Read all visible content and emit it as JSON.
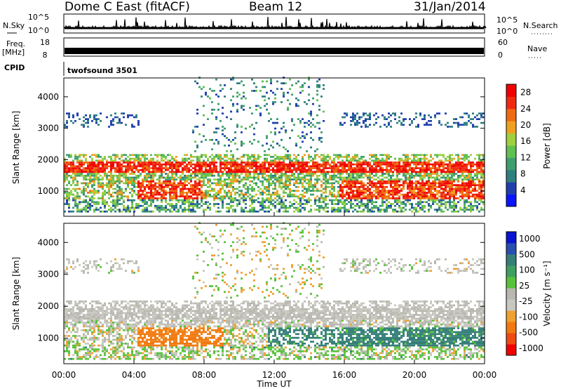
{
  "header": {
    "station": "Dome C East (fitACF)",
    "beam": "Beam 12",
    "date": "31/Jan/2014"
  },
  "status_panel": {
    "nsky_label": "N.Sky",
    "nsky_ticks": [
      "10^5",
      "10^0"
    ],
    "nsearch_label": "N.Search",
    "nsearch_ticks": [
      "10^5",
      "10^0"
    ],
    "freq_label": "Freq.",
    "freq_unit": "[MHz]",
    "freq_ticks": [
      "18",
      "8"
    ],
    "nave_label": "Nave",
    "nave_ticks": [
      "60",
      "0"
    ],
    "cpid_label": "CPID",
    "cpid_value": "twofsound 3501"
  },
  "colors": {
    "power_scale": [
      "#0a14ff",
      "#1f3fae",
      "#2f7f7f",
      "#3f9f6f",
      "#60c050",
      "#a0d040",
      "#f0a020",
      "#f06a10",
      "#f02a10",
      "#f00000"
    ],
    "velocity_scale": [
      "#0a14d0",
      "#284fb0",
      "#357f78",
      "#3f9f60",
      "#58c23a",
      "#b8b8b0",
      "#c8c8c0",
      "#f0a030",
      "#f07a10",
      "#f04a10",
      "#f00000"
    ]
  },
  "chart_data": [
    {
      "type": "heatmap",
      "title": "",
      "xlabel": "",
      "ylabel": "Slant Range [km]",
      "xlim": [
        "00:00",
        "24:00"
      ],
      "ylim": [
        200,
        4600
      ],
      "x_ticks": [
        "00:00",
        "04:00",
        "08:00",
        "12:00",
        "16:00",
        "20:00",
        "00:00"
      ],
      "y_ticks": [
        1000,
        2000,
        3000,
        4000
      ],
      "colorbar": {
        "label": "Power [dB]",
        "ticks": [
          4,
          8,
          12,
          16,
          20,
          24,
          28
        ],
        "range": [
          0,
          30
        ]
      },
      "bands": [
        {
          "range_km": [
            1620,
            1900
          ],
          "level_db": 26
        },
        {
          "range_km": [
            1400,
            1620
          ],
          "level_db": 16
        },
        {
          "range_km": [
            750,
            1150
          ],
          "level_db": 25
        },
        {
          "range_km": [
            300,
            650
          ],
          "level_db": 12
        },
        {
          "range_km": [
            3100,
            3600
          ],
          "level_db": 6
        }
      ]
    },
    {
      "type": "heatmap",
      "title": "",
      "xlabel": "Time UT",
      "ylabel": "Slant Range [km]",
      "xlim": [
        "00:00",
        "24:00"
      ],
      "ylim": [
        200,
        4600
      ],
      "x_ticks": [
        "00:00",
        "04:00",
        "08:00",
        "12:00",
        "16:00",
        "20:00",
        "00:00"
      ],
      "y_ticks": [
        1000,
        2000,
        3000,
        4000
      ],
      "colorbar": {
        "label": "Velocity [m s⁻¹]",
        "ticks": [
          "1000",
          "500",
          "100",
          "25",
          "-25",
          "-100",
          "-500",
          "-1000"
        ]
      },
      "bands": [
        {
          "range_km": [
            1300,
            2100
          ],
          "velocity_ms": 0
        },
        {
          "range_km": [
            700,
            1300
          ],
          "velocity_ms": 150
        },
        {
          "range_km": [
            500,
            1100
          ],
          "velocity_ms": -150
        }
      ]
    }
  ]
}
